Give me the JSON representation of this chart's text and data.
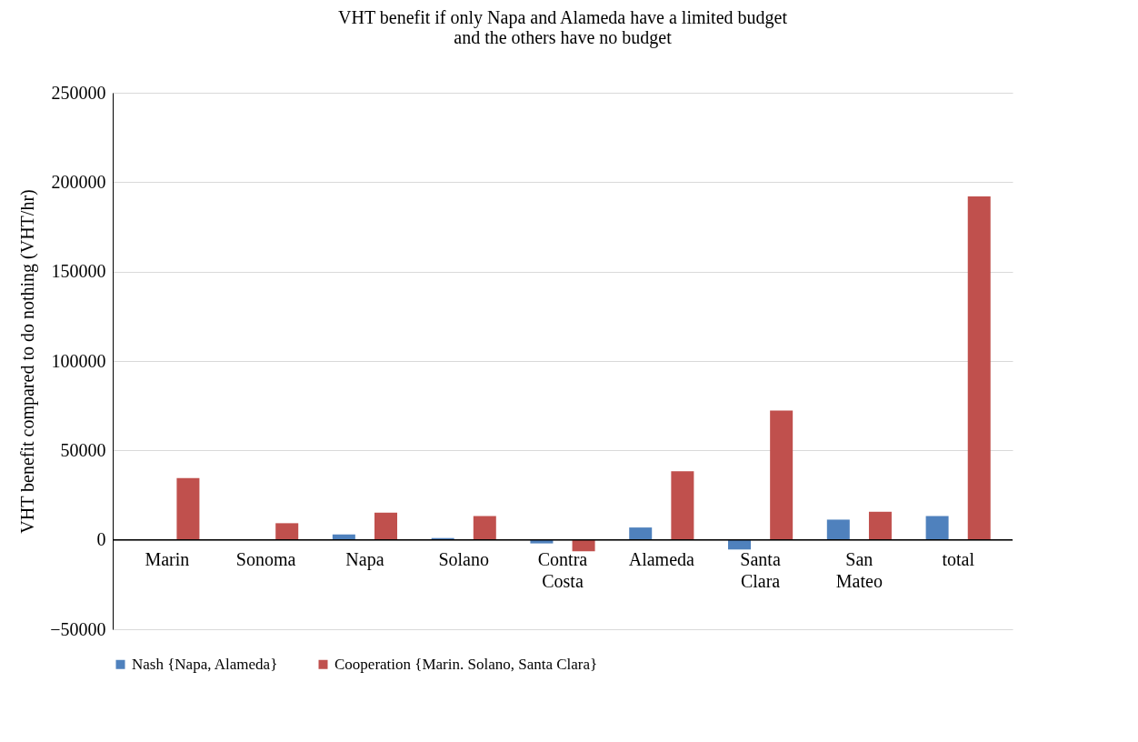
{
  "chart_data": {
    "type": "bar",
    "title": "VHT benefit if only Napa and Alameda have a limited budget\nand the others have no budget",
    "ylabel": "VHT benefit compared to do nothing (VHT/hr)",
    "categories": [
      "Marin",
      "Sonoma",
      "Napa",
      "Solano",
      "Contra\nCosta",
      "Alameda",
      "Santa\nClara",
      "San\nMateo",
      "total"
    ],
    "series": [
      {
        "name": "Nash {Napa, Alameda}",
        "color": "#4f81bd",
        "values": [
          0,
          0,
          3000,
          1000,
          -2000,
          6900,
          -5400,
          11300,
          13300
        ]
      },
      {
        "name": "Cooperation {Marin. Solano, Santa Clara}",
        "color": "#c0504d",
        "values": [
          34500,
          9300,
          15200,
          13300,
          -6400,
          38400,
          72300,
          15700,
          192000
        ]
      }
    ],
    "ylim": [
      -50000,
      250000
    ],
    "yticks": [
      -50000,
      0,
      50000,
      100000,
      150000,
      200000,
      250000
    ],
    "grid": "y",
    "legend": "bottom"
  }
}
